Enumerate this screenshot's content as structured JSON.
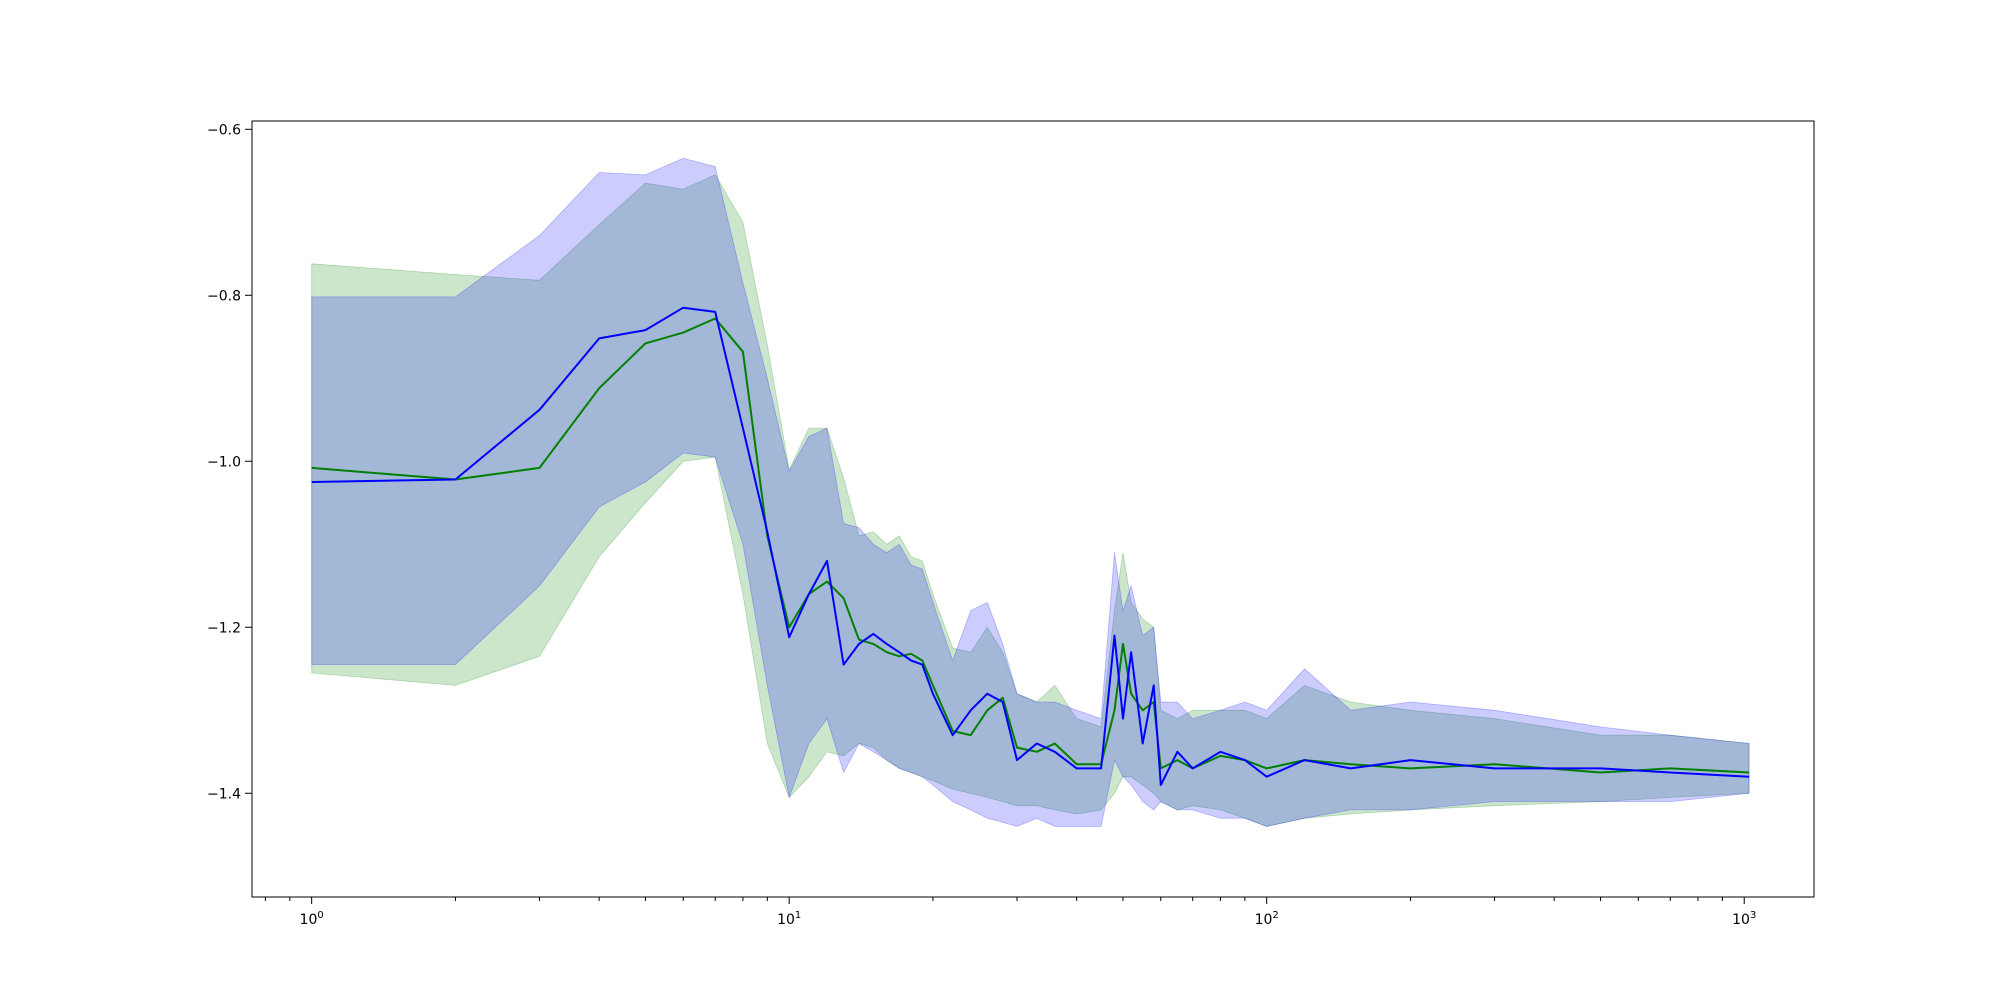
{
  "chart_data": {
    "type": "line",
    "title": "",
    "xlabel": "",
    "ylabel": "",
    "x_scale": "log",
    "xlim": [
      0.75,
      1400
    ],
    "ylim": [
      -1.525,
      -0.59
    ],
    "x_ticks": [
      {
        "value": 1,
        "base": "10",
        "exp": "0"
      },
      {
        "value": 10,
        "base": "10",
        "exp": "1"
      },
      {
        "value": 100,
        "base": "10",
        "exp": "2"
      },
      {
        "value": 1000,
        "base": "10",
        "exp": "3"
      }
    ],
    "y_ticks": [
      {
        "value": -0.6,
        "label": "−0.6"
      },
      {
        "value": -0.8,
        "label": "−0.8"
      },
      {
        "value": -1.0,
        "label": "−1.0"
      },
      {
        "value": -1.2,
        "label": "−1.2"
      },
      {
        "value": -1.4,
        "label": "−1.4"
      }
    ],
    "grid": false,
    "legend": "none",
    "series": [
      {
        "color": "#008000",
        "band_color": "#008000",
        "band_opacity": 0.2,
        "x": [
          1,
          2,
          3,
          4,
          5,
          6,
          7,
          8,
          9,
          10,
          11,
          12,
          13,
          14,
          15,
          16,
          17,
          18,
          19,
          20,
          22,
          24,
          26,
          28,
          30,
          33,
          36,
          40,
          45,
          48,
          50,
          52,
          55,
          58,
          60,
          65,
          70,
          80,
          90,
          100,
          120,
          150,
          200,
          300,
          500,
          700,
          1024
        ],
        "values": [
          -1.008,
          -1.022,
          -1.008,
          -0.912,
          -0.858,
          -0.845,
          -0.828,
          -0.868,
          -1.09,
          -1.2,
          -1.16,
          -1.145,
          -1.165,
          -1.215,
          -1.22,
          -1.23,
          -1.235,
          -1.232,
          -1.24,
          -1.27,
          -1.325,
          -1.33,
          -1.3,
          -1.285,
          -1.345,
          -1.35,
          -1.34,
          -1.365,
          -1.365,
          -1.3,
          -1.22,
          -1.28,
          -1.3,
          -1.29,
          -1.37,
          -1.36,
          -1.37,
          -1.355,
          -1.36,
          -1.37,
          -1.36,
          -1.365,
          -1.37,
          -1.365,
          -1.375,
          -1.37,
          -1.375
        ],
        "lower": [
          -1.255,
          -1.27,
          -1.235,
          -1.115,
          -1.05,
          -1.0,
          -0.995,
          -1.16,
          -1.34,
          -1.405,
          -1.38,
          -1.35,
          -1.355,
          -1.34,
          -1.345,
          -1.36,
          -1.37,
          -1.375,
          -1.38,
          -1.385,
          -1.395,
          -1.4,
          -1.405,
          -1.41,
          -1.415,
          -1.415,
          -1.42,
          -1.425,
          -1.42,
          -1.4,
          -1.38,
          -1.38,
          -1.39,
          -1.4,
          -1.41,
          -1.42,
          -1.415,
          -1.42,
          -1.43,
          -1.44,
          -1.43,
          -1.425,
          -1.42,
          -1.415,
          -1.41,
          -1.405,
          -1.4
        ],
        "upper": [
          -0.762,
          -0.775,
          -0.782,
          -0.715,
          -0.665,
          -0.672,
          -0.655,
          -0.712,
          -0.86,
          -1.01,
          -0.96,
          -0.96,
          -1.02,
          -1.09,
          -1.085,
          -1.1,
          -1.09,
          -1.115,
          -1.12,
          -1.16,
          -1.225,
          -1.23,
          -1.2,
          -1.23,
          -1.28,
          -1.29,
          -1.27,
          -1.31,
          -1.32,
          -1.18,
          -1.11,
          -1.17,
          -1.19,
          -1.2,
          -1.3,
          -1.31,
          -1.3,
          -1.3,
          -1.3,
          -1.31,
          -1.27,
          -1.29,
          -1.3,
          -1.31,
          -1.33,
          -1.33,
          -1.34
        ]
      },
      {
        "color": "#0000ff",
        "band_color": "#0000ff",
        "band_opacity": 0.2,
        "x": [
          1,
          2,
          3,
          4,
          5,
          6,
          7,
          8,
          9,
          10,
          11,
          12,
          13,
          14,
          15,
          16,
          17,
          18,
          19,
          20,
          22,
          24,
          26,
          28,
          30,
          33,
          36,
          40,
          45,
          48,
          50,
          52,
          55,
          58,
          60,
          65,
          70,
          80,
          90,
          100,
          120,
          150,
          200,
          300,
          500,
          700,
          1024
        ],
        "values": [
          -1.025,
          -1.022,
          -0.938,
          -0.852,
          -0.842,
          -0.815,
          -0.82,
          -0.96,
          -1.085,
          -1.212,
          -1.16,
          -1.12,
          -1.245,
          -1.22,
          -1.208,
          -1.22,
          -1.23,
          -1.24,
          -1.245,
          -1.28,
          -1.33,
          -1.3,
          -1.28,
          -1.29,
          -1.36,
          -1.34,
          -1.35,
          -1.37,
          -1.37,
          -1.21,
          -1.31,
          -1.23,
          -1.34,
          -1.27,
          -1.39,
          -1.35,
          -1.37,
          -1.35,
          -1.36,
          -1.38,
          -1.36,
          -1.37,
          -1.36,
          -1.37,
          -1.37,
          -1.375,
          -1.38
        ],
        "lower": [
          -1.245,
          -1.245,
          -1.15,
          -1.055,
          -1.025,
          -0.99,
          -0.995,
          -1.1,
          -1.27,
          -1.405,
          -1.34,
          -1.31,
          -1.375,
          -1.34,
          -1.35,
          -1.36,
          -1.37,
          -1.375,
          -1.38,
          -1.39,
          -1.41,
          -1.42,
          -1.43,
          -1.435,
          -1.44,
          -1.43,
          -1.44,
          -1.44,
          -1.44,
          -1.36,
          -1.38,
          -1.39,
          -1.41,
          -1.42,
          -1.41,
          -1.42,
          -1.42,
          -1.43,
          -1.43,
          -1.44,
          -1.43,
          -1.42,
          -1.42,
          -1.41,
          -1.41,
          -1.41,
          -1.4
        ],
        "upper": [
          -0.802,
          -0.802,
          -0.728,
          -0.652,
          -0.655,
          -0.635,
          -0.645,
          -0.785,
          -0.9,
          -1.012,
          -0.97,
          -0.96,
          -1.075,
          -1.08,
          -1.1,
          -1.11,
          -1.1,
          -1.125,
          -1.13,
          -1.17,
          -1.24,
          -1.18,
          -1.17,
          -1.22,
          -1.28,
          -1.29,
          -1.29,
          -1.3,
          -1.31,
          -1.11,
          -1.18,
          -1.15,
          -1.21,
          -1.2,
          -1.29,
          -1.29,
          -1.31,
          -1.3,
          -1.29,
          -1.3,
          -1.25,
          -1.3,
          -1.29,
          -1.3,
          -1.32,
          -1.33,
          -1.34
        ]
      }
    ]
  }
}
